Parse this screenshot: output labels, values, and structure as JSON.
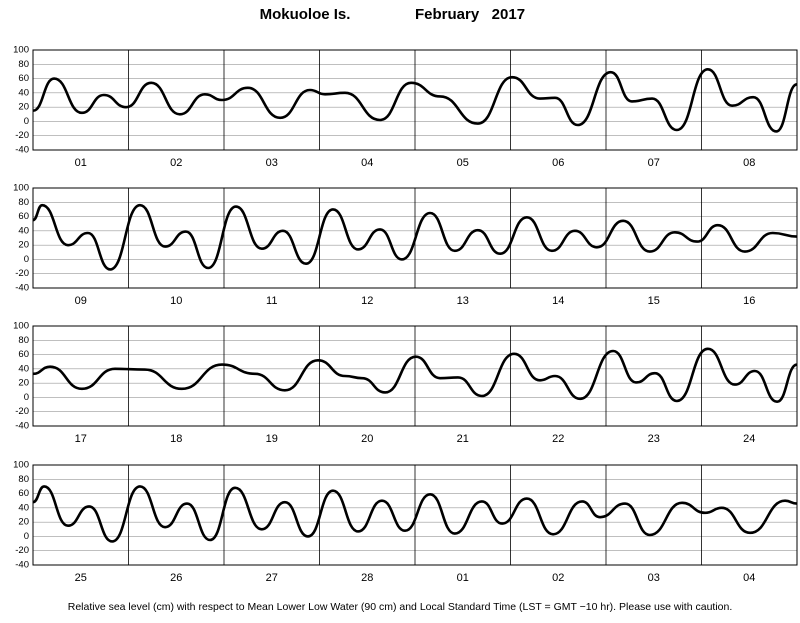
{
  "header": {
    "station": "Mokuoloe Is.",
    "month": "February   2017"
  },
  "footer": "Relative sea level (cm) with respect to Mean Lower Low Water (90 cm) and Local Standard Time (LST = GMT −10 hr). Please use with caution.",
  "chart_data": [
    {
      "type": "line",
      "categories": [
        "01",
        "02",
        "03",
        "04",
        "05",
        "06",
        "07",
        "08"
      ],
      "xlim": [
        0,
        192
      ],
      "ylim": [
        -40,
        100
      ],
      "yticks": [
        -40,
        -20,
        0,
        20,
        40,
        60,
        80,
        100
      ],
      "color": "#000000",
      "x": [
        0,
        5.3,
        12.3,
        17.8,
        23.4,
        29.7,
        36.9,
        43.2,
        47.5,
        54,
        62.1,
        69.6,
        73.4,
        78.4,
        87.2,
        95,
        102.3,
        111.8,
        120.4,
        127.4,
        131.2,
        136.9,
        145.2,
        150.5,
        155.6,
        161.8,
        169.6,
        175.7,
        181,
        186.8,
        192
      ],
      "values": [
        15,
        60,
        12,
        37,
        20,
        54,
        10,
        38,
        30,
        47,
        5,
        44,
        38,
        40,
        2,
        54,
        35,
        -3,
        62,
        32,
        33,
        -5,
        69,
        28,
        32,
        -12,
        73,
        22,
        34,
        -14,
        52
      ]
    },
    {
      "type": "line",
      "categories": [
        "09",
        "10",
        "11",
        "12",
        "13",
        "14",
        "15",
        "16"
      ],
      "xlim": [
        0,
        192
      ],
      "ylim": [
        -40,
        100
      ],
      "yticks": [
        -40,
        -20,
        0,
        20,
        40,
        60,
        80,
        100
      ],
      "color": "#000000",
      "x": [
        0,
        2.3,
        8.8,
        13.8,
        19.4,
        26.9,
        33.2,
        38.4,
        44,
        51,
        57.5,
        62.8,
        68.6,
        75.4,
        81.7,
        87.2,
        92.7,
        99.8,
        106,
        111.8,
        117.4,
        124.1,
        130.4,
        136.2,
        141.7,
        148.3,
        155,
        161.3,
        166.9,
        172.1,
        178.9,
        185.9,
        192
      ],
      "values": [
        55,
        76,
        20,
        37,
        -14,
        76,
        18,
        39,
        -12,
        74,
        15,
        40,
        -6,
        70,
        14,
        42,
        0,
        65,
        12,
        41,
        8,
        59,
        12,
        40,
        17,
        54,
        11,
        38,
        25,
        48,
        11,
        37,
        32
      ]
    },
    {
      "type": "line",
      "categories": [
        "17",
        "18",
        "19",
        "20",
        "21",
        "22",
        "23",
        "24"
      ],
      "xlim": [
        0,
        192
      ],
      "ylim": [
        -40,
        100
      ],
      "yticks": [
        -40,
        -20,
        0,
        20,
        40,
        60,
        80,
        100
      ],
      "color": "#000000",
      "x": [
        0,
        4.3,
        12.3,
        20.6,
        28.1,
        37.4,
        47.5,
        55.8,
        63.3,
        71.6,
        78.4,
        82.7,
        88.5,
        96.2,
        102.3,
        106.8,
        112.8,
        120.9,
        127.4,
        131.2,
        137.5,
        145.8,
        151.6,
        156.3,
        161.8,
        169.6,
        176.4,
        181.4,
        187,
        192
      ],
      "values": [
        33,
        43,
        12,
        40,
        39,
        12,
        46,
        33,
        10,
        52,
        30,
        27,
        7,
        57,
        27,
        28,
        2,
        61,
        24,
        30,
        -2,
        65,
        21,
        34,
        -5,
        68,
        18,
        37,
        -6,
        46
      ]
    },
    {
      "type": "line",
      "categories": [
        "25",
        "26",
        "27",
        "28",
        "01",
        "02",
        "03",
        "04"
      ],
      "xlim": [
        0,
        192
      ],
      "ylim": [
        -40,
        100
      ],
      "yticks": [
        -40,
        -20,
        0,
        20,
        40,
        60,
        80,
        100
      ],
      "color": "#000000",
      "x": [
        0,
        2.8,
        8.8,
        14.1,
        19.9,
        26.9,
        33.2,
        38.7,
        44.5,
        50.8,
        57.5,
        63.3,
        69.1,
        75.4,
        81.7,
        87.7,
        93.5,
        99.8,
        106,
        112.8,
        117.9,
        124.1,
        130.7,
        138,
        142.5,
        148.8,
        155,
        163.1,
        168.9,
        173.1,
        180.2,
        189,
        192
      ],
      "values": [
        48,
        70,
        15,
        42,
        -7,
        70,
        13,
        46,
        -5,
        68,
        10,
        48,
        0,
        64,
        7,
        50,
        8,
        59,
        4,
        49,
        18,
        53,
        3,
        49,
        27,
        46,
        2,
        47,
        33,
        40,
        5,
        50,
        46
      ]
    }
  ]
}
